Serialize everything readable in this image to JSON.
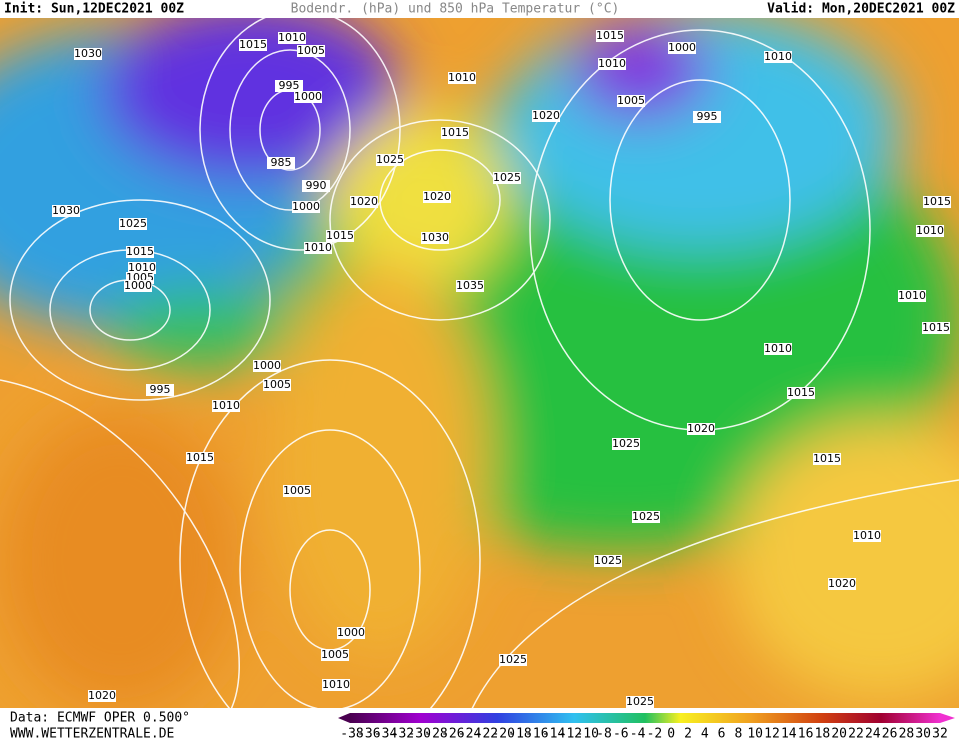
{
  "header": {
    "init": "Init: Sun,12DEC2021 00Z",
    "title": "Bodendr. (hPa) und 850 hPa Temperatur (°C)",
    "valid": "Valid: Mon,20DEC2021 00Z"
  },
  "footer": {
    "data": "Data: ECMWF OPER 0.500°",
    "site": "WWW.WETTERZENTRALE.DE"
  },
  "colorbar": {
    "ticks": [
      -38,
      -36,
      -34,
      -32,
      -30,
      -28,
      -26,
      -24,
      -22,
      -20,
      -18,
      -16,
      -14,
      -12,
      -10,
      -8,
      -6,
      -4,
      -2,
      0,
      2,
      4,
      6,
      8,
      10,
      12,
      14,
      16,
      18,
      20,
      22,
      24,
      26,
      28,
      30,
      32
    ]
  },
  "isobars": [
    "1030",
    "1015",
    "1010",
    "1005",
    "995",
    "1000",
    "985",
    "990",
    "1000",
    "1010",
    "1015",
    "1025",
    "1020",
    "1020",
    "1030",
    "1035",
    "1025",
    "1015",
    "1010",
    "1020",
    "1015",
    "1010",
    "1000",
    "1005",
    "995",
    "1010",
    "1030",
    "1025",
    "1015",
    "1010",
    "1005",
    "1000",
    "1000",
    "1005",
    "995",
    "1010",
    "1015",
    "1005",
    "1025",
    "1020",
    "1010",
    "1015",
    "1015",
    "1025",
    "1025",
    "1010",
    "1020",
    "1000",
    "1005",
    "1010",
    "1025",
    "1025",
    "1020",
    "1015",
    "1010",
    "1010",
    "1015"
  ]
}
